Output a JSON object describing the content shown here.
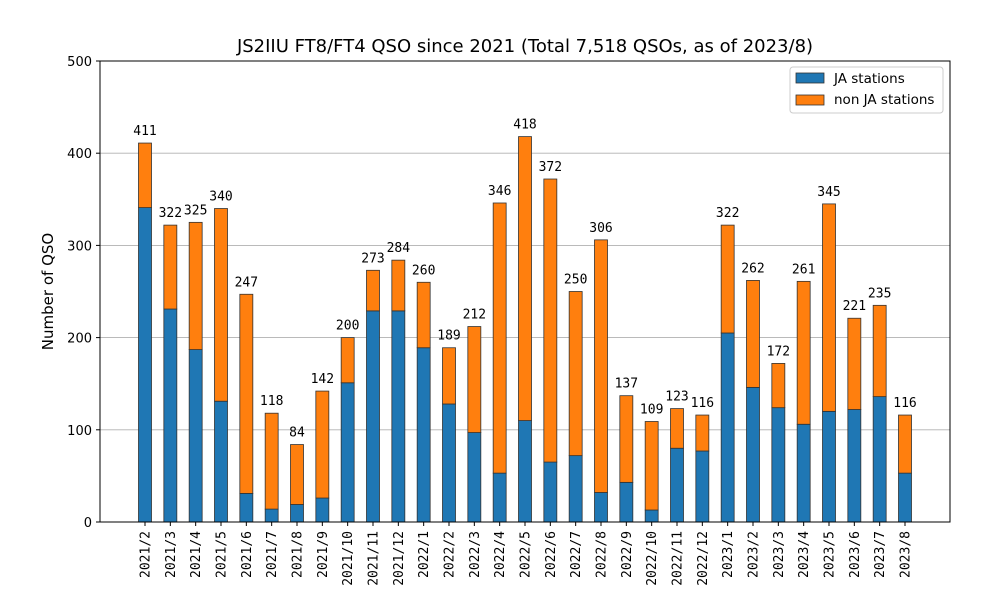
{
  "chart_data": {
    "type": "bar",
    "stacked": true,
    "title": "JS2IIU FT8/FT4 QSO since 2021 (Total 7,518 QSOs, as of 2023/8)",
    "xlabel": "",
    "ylabel": "Number of QSO",
    "ylim": [
      0,
      500
    ],
    "yticks": [
      0,
      100,
      200,
      300,
      400,
      500
    ],
    "grid": "y",
    "legend_position": "top-right",
    "categories": [
      "2021/2",
      "2021/3",
      "2021/4",
      "2021/5",
      "2021/6",
      "2021/7",
      "2021/8",
      "2021/9",
      "2021/10",
      "2021/11",
      "2021/12",
      "2022/1",
      "2022/2",
      "2022/3",
      "2022/4",
      "2022/5",
      "2022/6",
      "2022/7",
      "2022/8",
      "2022/9",
      "2022/10",
      "2022/11",
      "2022/12",
      "2023/1",
      "2023/2",
      "2023/3",
      "2023/4",
      "2023/5",
      "2023/6",
      "2023/7",
      "2023/8"
    ],
    "series": [
      {
        "name": "JA stations",
        "color": "#1f77b4",
        "values": [
          341,
          231,
          187,
          131,
          31,
          14,
          19,
          26,
          151,
          229,
          229,
          189,
          128,
          97,
          53,
          110,
          65,
          72,
          32,
          43,
          13,
          80,
          77,
          205,
          146,
          124,
          106,
          120,
          122,
          136,
          53
        ]
      },
      {
        "name": "non JA stations",
        "color": "#ff7f0e",
        "values": [
          70,
          91,
          138,
          209,
          216,
          104,
          65,
          116,
          49,
          44,
          55,
          71,
          61,
          115,
          293,
          308,
          307,
          178,
          274,
          94,
          96,
          43,
          39,
          117,
          116,
          48,
          155,
          225,
          99,
          99,
          63
        ]
      }
    ],
    "totals": [
      411,
      322,
      325,
      340,
      247,
      118,
      84,
      142,
      200,
      273,
      284,
      260,
      189,
      212,
      346,
      418,
      372,
      250,
      306,
      137,
      109,
      123,
      116,
      322,
      262,
      172,
      261,
      345,
      221,
      235,
      116
    ]
  }
}
